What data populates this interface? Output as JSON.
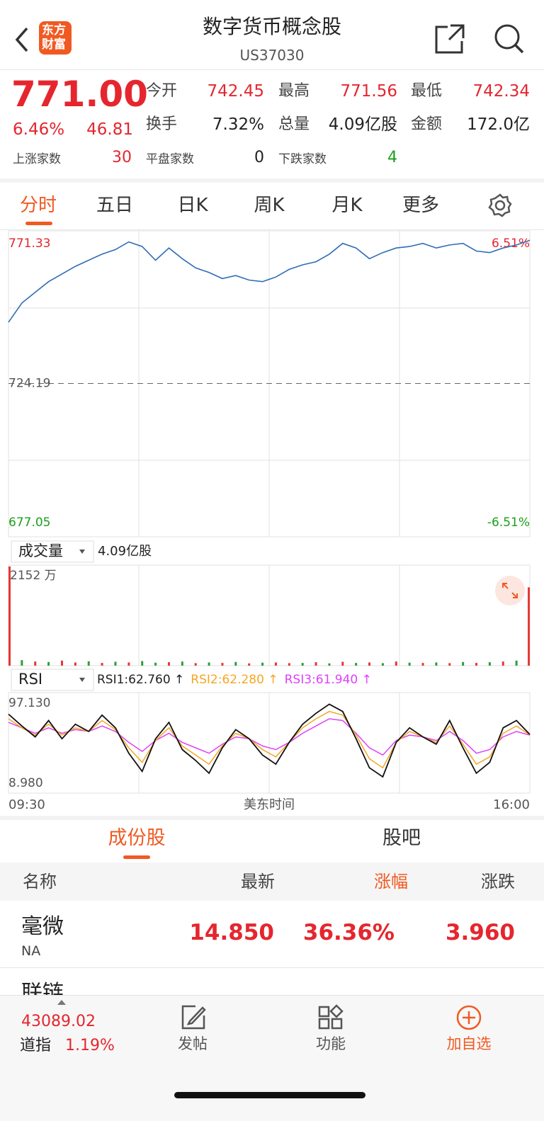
{
  "header": {
    "title": "数字货币概念股",
    "code": "US37030",
    "logo_top": "东方",
    "logo_bottom": "财富"
  },
  "quote": {
    "price": "771.00",
    "change_pct": "6.46%",
    "change": "46.81",
    "stats": [
      {
        "label": "今开",
        "value": "742.45"
      },
      {
        "label": "最高",
        "value": "771.56"
      },
      {
        "label": "最低",
        "value": "742.34"
      },
      {
        "label": "换手",
        "value": "7.32%"
      },
      {
        "label": "总量",
        "value": "4.09亿股"
      },
      {
        "label": "金额",
        "value": "172.0亿"
      }
    ],
    "breadth": [
      {
        "label": "上涨家数",
        "value": "30"
      },
      {
        "label": "平盘家数",
        "value": "0"
      },
      {
        "label": "下跌家数",
        "value": "4"
      }
    ]
  },
  "tabs": [
    "分时",
    "五日",
    "日K",
    "周K",
    "月K",
    "更多"
  ],
  "price": {
    "color": "#2f6db5",
    "ylim": [
      677.05,
      771.33
    ],
    "yticks": [
      {
        "value": 771.33,
        "label": "771.33"
      },
      {
        "value": 724.19,
        "label": "724.19"
      },
      {
        "value": 677.05,
        "label": "677.05"
      }
    ],
    "y2lim": [
      -6.51,
      6.51
    ],
    "y2ticks": [
      {
        "value": 6.51,
        "label": "6.51%"
      },
      {
        "value": -6.51,
        "label": "-6.51%"
      }
    ],
    "values": [
      744.2,
      750.5,
      754.0,
      757.5,
      760.0,
      762.5,
      764.5,
      766.5,
      768.0,
      770.5,
      769.0,
      764.5,
      768.5,
      765.0,
      762.0,
      760.5,
      758.5,
      759.5,
      758.0,
      757.5,
      759.0,
      761.5,
      763.0,
      764.0,
      766.5,
      770.0,
      768.5,
      765.0,
      767.0,
      768.5,
      769.0,
      770.0,
      768.5,
      769.5,
      770.0,
      767.5,
      767.0,
      768.5,
      769.5,
      771.0
    ]
  },
  "volume": {
    "selector": "成交量",
    "total": "4.09亿股",
    "ylim": [
      0,
      2152
    ],
    "yticks": [
      {
        "value": 2152,
        "label": "2152 万"
      }
    ],
    "values": [
      2152,
      120,
      90,
      80,
      110,
      70,
      95,
      60,
      85,
      70,
      100,
      65,
      75,
      90,
      55,
      70,
      60,
      80,
      50,
      65,
      70,
      55,
      60,
      75,
      50,
      85,
      60,
      70,
      55,
      90,
      65,
      60,
      70,
      55,
      80,
      60,
      75,
      90,
      110,
      1700
    ],
    "colors": [
      "#e53935",
      "#2e9e3a",
      "#e53935",
      "#2e9e3a",
      "#e53935",
      "#e53935",
      "#2e9e3a",
      "#e53935",
      "#2e9e3a",
      "#e53935",
      "#2e9e3a",
      "#2e9e3a",
      "#e53935",
      "#2e9e3a",
      "#e53935",
      "#2e9e3a",
      "#e53935",
      "#2e9e3a",
      "#e53935",
      "#2e9e3a",
      "#e53935",
      "#e53935",
      "#2e9e3a",
      "#e53935",
      "#2e9e3a",
      "#e53935",
      "#2e9e3a",
      "#e53935",
      "#2e9e3a",
      "#e53935",
      "#2e9e3a",
      "#e53935",
      "#2e9e3a",
      "#e53935",
      "#2e9e3a",
      "#e53935",
      "#2e9e3a",
      "#e53935",
      "#2e9e3a",
      "#e53935"
    ]
  },
  "rsi": {
    "selector": "RSI",
    "ylim": [
      8.98,
      97.13
    ],
    "yticks": [
      {
        "value": 97.13,
        "label": "97.130"
      },
      {
        "value": 8.98,
        "label": "8.980"
      }
    ],
    "series": [
      {
        "label": "RSI1:62.760 ↑",
        "color": "#111111",
        "values": [
          85,
          72,
          60,
          78,
          58,
          74,
          66,
          84,
          70,
          42,
          22,
          58,
          76,
          46,
          34,
          20,
          48,
          68,
          58,
          40,
          30,
          54,
          74,
          86,
          96,
          88,
          58,
          26,
          16,
          54,
          70,
          60,
          52,
          78,
          48,
          20,
          32,
          70,
          78,
          62.76
        ]
      },
      {
        "label": "RSI2:62.280 ↑",
        "color": "#f5a623",
        "values": [
          80,
          70,
          62,
          74,
          62,
          70,
          66,
          78,
          68,
          48,
          32,
          56,
          70,
          50,
          40,
          30,
          50,
          64,
          58,
          46,
          38,
          54,
          70,
          80,
          88,
          84,
          62,
          36,
          26,
          54,
          66,
          60,
          54,
          72,
          52,
          30,
          38,
          64,
          72,
          62.28
        ]
      },
      {
        "label": "RSI3:61.940 ↑",
        "color": "#e040fb",
        "values": [
          76,
          70,
          64,
          70,
          64,
          68,
          66,
          72,
          66,
          54,
          44,
          56,
          64,
          54,
          48,
          42,
          52,
          60,
          58,
          50,
          46,
          54,
          64,
          72,
          80,
          78,
          64,
          48,
          40,
          56,
          62,
          60,
          56,
          66,
          56,
          42,
          46,
          60,
          66,
          61.94
        ]
      }
    ]
  },
  "time_axis": [
    "09:30",
    "美东时间",
    "16:00"
  ],
  "sub_tabs": [
    "成份股",
    "股吧"
  ],
  "table": {
    "header": [
      "名称",
      "最新",
      "涨幅",
      "涨跌"
    ],
    "rows": [
      {
        "name": "毫微",
        "code": "NA",
        "cells": [
          "14.850",
          "36.36%",
          "3.960"
        ]
      },
      {
        "name": "联链"
      }
    ]
  },
  "footer": {
    "index_value": "43089.02",
    "index_name": "道指",
    "index_change": "1.19%",
    "buttons": [
      "发帖",
      "功能",
      "加自选"
    ]
  }
}
